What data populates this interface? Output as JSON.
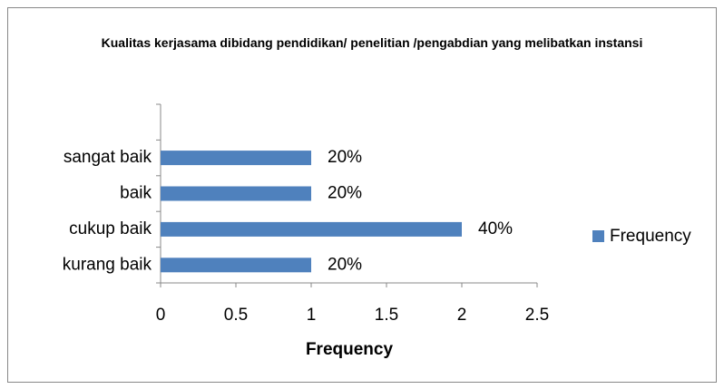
{
  "chart_data": {
    "type": "bar",
    "orientation": "horizontal",
    "title": "Kualitas kerjasama dibidang pendidikan/ penelitian /pengabdian yang melibatkan instansi",
    "categories": [
      "kurang baik",
      "cukup baik",
      "baik",
      "sangat baik",
      null
    ],
    "series": [
      {
        "name": "Frequency",
        "color": "#4f81bd",
        "values": [
          1,
          2,
          1,
          1,
          null
        ],
        "value_labels": [
          "20%",
          "40%",
          "20%",
          "20%",
          null
        ]
      }
    ],
    "xlabel": "Frequency",
    "xlim": [
      0,
      2.5
    ],
    "xticks": [
      0,
      0.5,
      1,
      1.5,
      2,
      2.5
    ],
    "legend": "right",
    "grid": false
  }
}
